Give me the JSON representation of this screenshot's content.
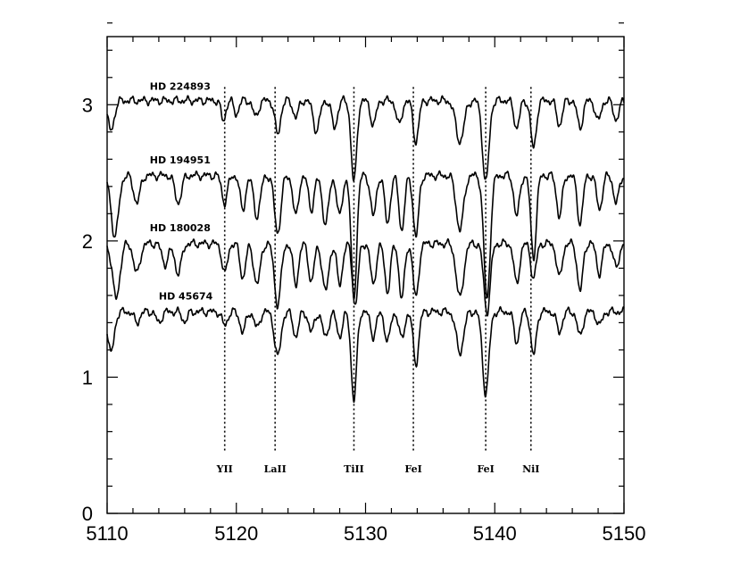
{
  "chart_data": {
    "type": "line",
    "xlim": [
      5110,
      5150
    ],
    "ylim": [
      0,
      3.5
    ],
    "x_ticks": [
      5110,
      5120,
      5130,
      5140,
      5150
    ],
    "y_ticks": [
      0,
      1,
      2,
      3
    ],
    "grid": false,
    "series": [
      {
        "name": "HD 224893",
        "continuum": 3.03,
        "label_x": 5113.3,
        "label_y": 3.11,
        "lines": [
          {
            "x": 5110.3,
            "depth": 0.22,
            "width": 0.35
          },
          {
            "x": 5119.0,
            "depth": 0.15,
            "width": 0.25
          },
          {
            "x": 5120.0,
            "depth": 0.1,
            "width": 0.25
          },
          {
            "x": 5121.5,
            "depth": 0.12,
            "width": 0.3
          },
          {
            "x": 5123.2,
            "depth": 0.25,
            "width": 0.3
          },
          {
            "x": 5124.6,
            "depth": 0.12,
            "width": 0.3
          },
          {
            "x": 5126.2,
            "depth": 0.22,
            "width": 0.35
          },
          {
            "x": 5127.6,
            "depth": 0.2,
            "width": 0.3
          },
          {
            "x": 5129.1,
            "depth": 0.6,
            "width": 0.3
          },
          {
            "x": 5130.6,
            "depth": 0.18,
            "width": 0.3
          },
          {
            "x": 5132.6,
            "depth": 0.18,
            "width": 0.3
          },
          {
            "x": 5133.9,
            "depth": 0.3,
            "width": 0.3
          },
          {
            "x": 5137.3,
            "depth": 0.3,
            "width": 0.45
          },
          {
            "x": 5139.3,
            "depth": 0.6,
            "width": 0.35
          },
          {
            "x": 5141.7,
            "depth": 0.2,
            "width": 0.3
          },
          {
            "x": 5143.0,
            "depth": 0.35,
            "width": 0.3
          },
          {
            "x": 5145.0,
            "depth": 0.18,
            "width": 0.3
          },
          {
            "x": 5146.6,
            "depth": 0.2,
            "width": 0.3
          },
          {
            "x": 5148.0,
            "depth": 0.15,
            "width": 0.3
          },
          {
            "x": 5149.4,
            "depth": 0.14,
            "width": 0.3
          }
        ]
      },
      {
        "name": "HD 194951",
        "continuum": 2.48,
        "label_x": 5113.3,
        "label_y": 2.57,
        "lines": [
          {
            "x": 5110.6,
            "depth": 0.45,
            "width": 0.4
          },
          {
            "x": 5112.3,
            "depth": 0.2,
            "width": 0.35
          },
          {
            "x": 5115.5,
            "depth": 0.2,
            "width": 0.35
          },
          {
            "x": 5119.1,
            "depth": 0.2,
            "width": 0.3
          },
          {
            "x": 5120.5,
            "depth": 0.25,
            "width": 0.3
          },
          {
            "x": 5121.6,
            "depth": 0.3,
            "width": 0.35
          },
          {
            "x": 5123.2,
            "depth": 0.42,
            "width": 0.35
          },
          {
            "x": 5124.6,
            "depth": 0.3,
            "width": 0.3
          },
          {
            "x": 5125.8,
            "depth": 0.25,
            "width": 0.3
          },
          {
            "x": 5126.9,
            "depth": 0.35,
            "width": 0.35
          },
          {
            "x": 5128.0,
            "depth": 0.3,
            "width": 0.3
          },
          {
            "x": 5129.1,
            "depth": 0.9,
            "width": 0.3
          },
          {
            "x": 5130.6,
            "depth": 0.3,
            "width": 0.3
          },
          {
            "x": 5131.7,
            "depth": 0.35,
            "width": 0.3
          },
          {
            "x": 5132.8,
            "depth": 0.4,
            "width": 0.3
          },
          {
            "x": 5133.9,
            "depth": 0.45,
            "width": 0.3
          },
          {
            "x": 5137.3,
            "depth": 0.4,
            "width": 0.4
          },
          {
            "x": 5139.4,
            "depth": 0.9,
            "width": 0.35
          },
          {
            "x": 5141.7,
            "depth": 0.3,
            "width": 0.3
          },
          {
            "x": 5143.0,
            "depth": 0.6,
            "width": 0.3
          },
          {
            "x": 5145.0,
            "depth": 0.3,
            "width": 0.3
          },
          {
            "x": 5146.6,
            "depth": 0.35,
            "width": 0.3
          },
          {
            "x": 5148.1,
            "depth": 0.25,
            "width": 0.3
          },
          {
            "x": 5149.4,
            "depth": 0.2,
            "width": 0.3
          }
        ]
      },
      {
        "name": "HD 180028",
        "continuum": 1.98,
        "label_x": 5113.3,
        "label_y": 2.07,
        "lines": [
          {
            "x": 5110.7,
            "depth": 0.4,
            "width": 0.4
          },
          {
            "x": 5112.3,
            "depth": 0.22,
            "width": 0.35
          },
          {
            "x": 5114.5,
            "depth": 0.15,
            "width": 0.35
          },
          {
            "x": 5115.5,
            "depth": 0.22,
            "width": 0.35
          },
          {
            "x": 5119.1,
            "depth": 0.22,
            "width": 0.3
          },
          {
            "x": 5120.5,
            "depth": 0.25,
            "width": 0.3
          },
          {
            "x": 5121.6,
            "depth": 0.3,
            "width": 0.35
          },
          {
            "x": 5123.2,
            "depth": 0.45,
            "width": 0.35
          },
          {
            "x": 5124.6,
            "depth": 0.3,
            "width": 0.3
          },
          {
            "x": 5125.8,
            "depth": 0.28,
            "width": 0.3
          },
          {
            "x": 5126.9,
            "depth": 0.35,
            "width": 0.35
          },
          {
            "x": 5128.0,
            "depth": 0.3,
            "width": 0.3
          },
          {
            "x": 5129.2,
            "depth": 0.45,
            "width": 0.3
          },
          {
            "x": 5130.6,
            "depth": 0.3,
            "width": 0.3
          },
          {
            "x": 5131.7,
            "depth": 0.35,
            "width": 0.3
          },
          {
            "x": 5132.8,
            "depth": 0.4,
            "width": 0.3
          },
          {
            "x": 5133.9,
            "depth": 0.4,
            "width": 0.3
          },
          {
            "x": 5137.3,
            "depth": 0.4,
            "width": 0.4
          },
          {
            "x": 5139.4,
            "depth": 0.5,
            "width": 0.35
          },
          {
            "x": 5141.7,
            "depth": 0.3,
            "width": 0.3
          },
          {
            "x": 5143.0,
            "depth": 0.25,
            "width": 0.3
          },
          {
            "x": 5145.0,
            "depth": 0.25,
            "width": 0.3
          },
          {
            "x": 5146.6,
            "depth": 0.35,
            "width": 0.3
          },
          {
            "x": 5148.1,
            "depth": 0.22,
            "width": 0.3
          },
          {
            "x": 5149.4,
            "depth": 0.18,
            "width": 0.3
          }
        ]
      },
      {
        "name": "HD 45674",
        "continuum": 1.48,
        "label_x": 5114.0,
        "label_y": 1.57,
        "lines": [
          {
            "x": 5110.3,
            "depth": 0.3,
            "width": 0.35
          },
          {
            "x": 5112.3,
            "depth": 0.08,
            "width": 0.3
          },
          {
            "x": 5114.0,
            "depth": 0.08,
            "width": 0.3
          },
          {
            "x": 5116.0,
            "depth": 0.07,
            "width": 0.3
          },
          {
            "x": 5119.1,
            "depth": 0.1,
            "width": 0.3
          },
          {
            "x": 5120.5,
            "depth": 0.15,
            "width": 0.3
          },
          {
            "x": 5121.6,
            "depth": 0.12,
            "width": 0.3
          },
          {
            "x": 5123.2,
            "depth": 0.33,
            "width": 0.35
          },
          {
            "x": 5124.6,
            "depth": 0.18,
            "width": 0.3
          },
          {
            "x": 5125.8,
            "depth": 0.15,
            "width": 0.3
          },
          {
            "x": 5126.9,
            "depth": 0.18,
            "width": 0.35
          },
          {
            "x": 5128.0,
            "depth": 0.18,
            "width": 0.3
          },
          {
            "x": 5129.1,
            "depth": 0.65,
            "width": 0.3
          },
          {
            "x": 5130.6,
            "depth": 0.18,
            "width": 0.3
          },
          {
            "x": 5131.7,
            "depth": 0.22,
            "width": 0.3
          },
          {
            "x": 5132.8,
            "depth": 0.2,
            "width": 0.3
          },
          {
            "x": 5133.9,
            "depth": 0.38,
            "width": 0.3
          },
          {
            "x": 5137.3,
            "depth": 0.3,
            "width": 0.4
          },
          {
            "x": 5139.3,
            "depth": 0.6,
            "width": 0.35
          },
          {
            "x": 5141.7,
            "depth": 0.22,
            "width": 0.3
          },
          {
            "x": 5143.0,
            "depth": 0.32,
            "width": 0.3
          },
          {
            "x": 5145.0,
            "depth": 0.15,
            "width": 0.3
          },
          {
            "x": 5146.6,
            "depth": 0.18,
            "width": 0.3
          },
          {
            "x": 5148.1,
            "depth": 0.1,
            "width": 0.3
          }
        ]
      }
    ],
    "line_markers": [
      {
        "label": "YII",
        "x": 5119.1
      },
      {
        "label": "LaII",
        "x": 5123.0
      },
      {
        "label": "TiII",
        "x": 5129.1
      },
      {
        "label": "FeI",
        "x": 5133.7
      },
      {
        "label": "FeI",
        "x": 5139.3
      },
      {
        "label": "NiI",
        "x": 5142.8
      }
    ],
    "marker_top_y": 3.13,
    "marker_label_y": 0.3
  }
}
